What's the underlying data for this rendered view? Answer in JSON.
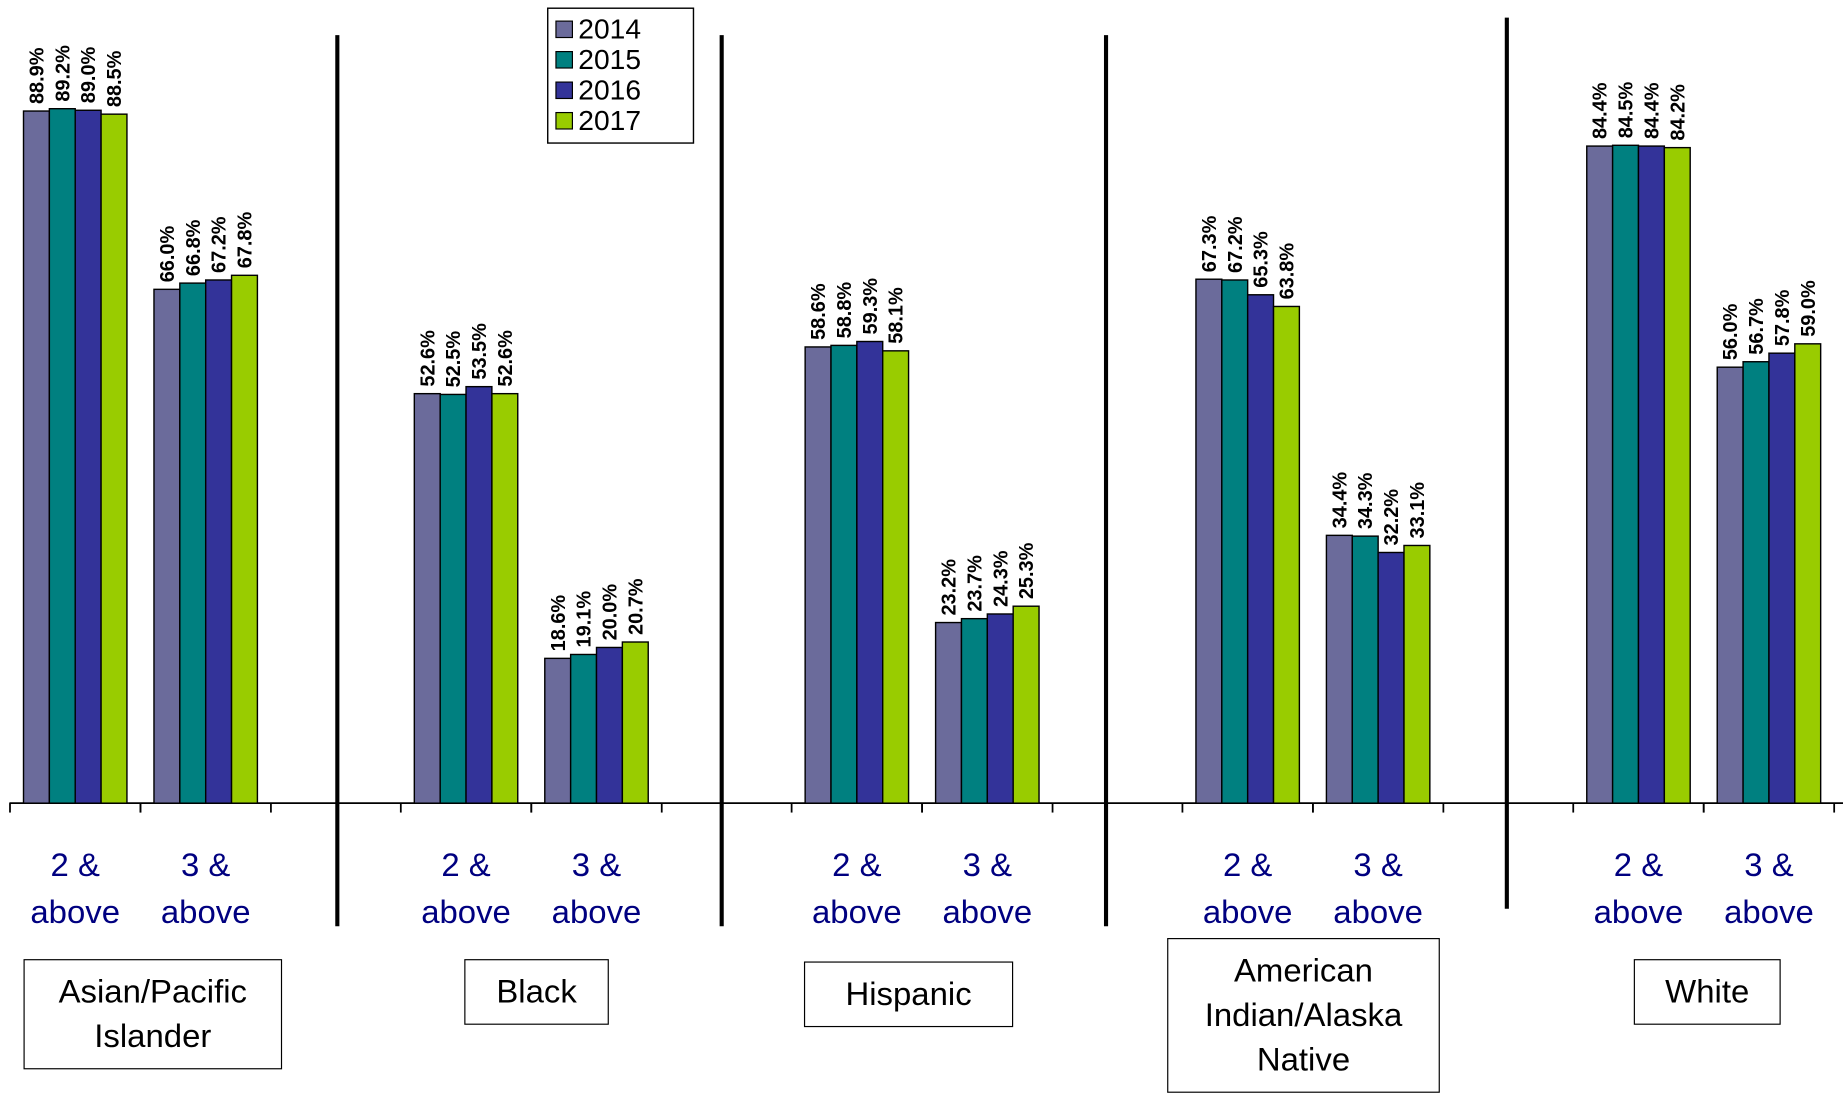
{
  "chart_data": {
    "type": "bar",
    "categories": [
      "2 & above",
      "3 & above",
      "2 & above",
      "3 & above",
      "2 & above",
      "3 & above",
      "2 & above",
      "3 & above",
      "2 & above",
      "3 & above"
    ],
    "groups": [
      "Asian/Pacific Islander",
      "Black",
      "Hispanic",
      "American Indian/Alaska Native",
      "White"
    ],
    "ylim": [
      0,
      100
    ],
    "legend": "top",
    "series": [
      {
        "name": "2014",
        "color": "#6B6B9B",
        "values": [
          88.9,
          66.0,
          52.6,
          18.6,
          58.6,
          23.2,
          67.3,
          34.4,
          84.4,
          56.0
        ],
        "value_labels": [
          "88.9%",
          "66.0%",
          "52.6%",
          "18.6%",
          "58.6%",
          "23.2%",
          "67.3%",
          "34.4%",
          "84.4%",
          "56.0%"
        ]
      },
      {
        "name": "2015",
        "color": "#008080",
        "values": [
          89.2,
          66.8,
          52.5,
          19.1,
          58.8,
          23.7,
          67.2,
          34.3,
          84.5,
          56.7
        ],
        "value_labels": [
          "89.2%",
          "66.8%",
          "52.5%",
          "19.1%",
          "58.8%",
          "23.7%",
          "67.2%",
          "34.3%",
          "84.5%",
          "56.7%"
        ]
      },
      {
        "name": "2016",
        "color": "#333399",
        "values": [
          89.0,
          67.2,
          53.5,
          20.0,
          59.3,
          24.3,
          65.3,
          32.2,
          84.4,
          57.8
        ],
        "value_labels": [
          "89.0%",
          "67.2%",
          "53.5%",
          "20.0%",
          "59.3%",
          "24.3%",
          "65.3%",
          "32.2%",
          "84.4%",
          "57.8%"
        ]
      },
      {
        "name": "2017",
        "color": "#99CC00",
        "values": [
          88.5,
          67.8,
          52.6,
          20.7,
          58.1,
          25.3,
          63.8,
          33.1,
          84.2,
          59.0
        ],
        "value_labels": [
          "88.5%",
          "67.8%",
          "52.6%",
          "20.7%",
          "58.1%",
          "25.3%",
          "63.8%",
          "33.1%",
          "84.2%",
          "59.0%"
        ]
      }
    ]
  }
}
